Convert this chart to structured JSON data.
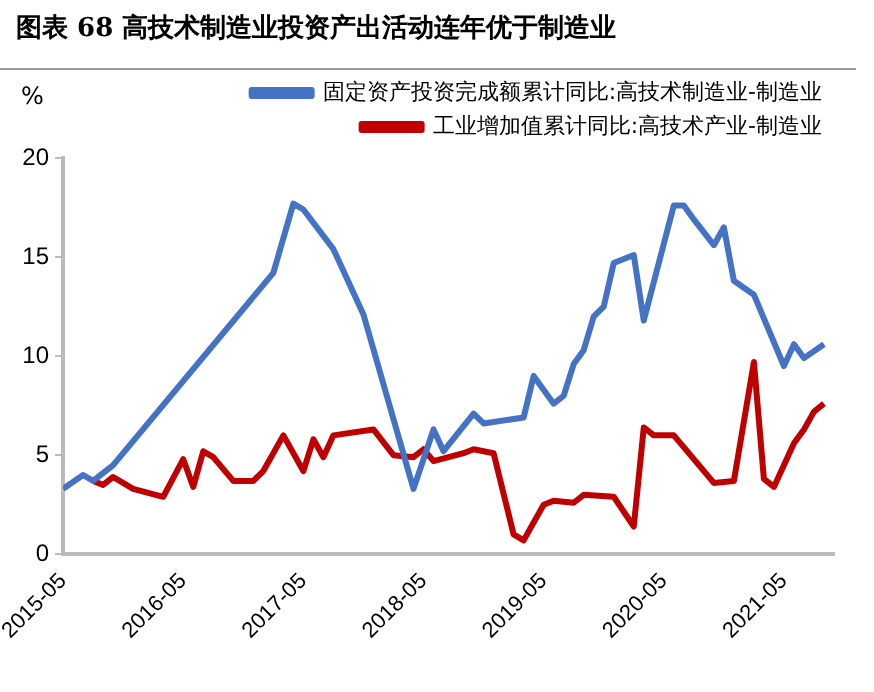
{
  "chart_data": {
    "type": "line",
    "title": "图表 68  高技术制造业投资产出活动连年优于制造业",
    "ylabel": "%",
    "xlim": [
      "2015-05",
      "2021-10"
    ],
    "xticks": [
      "2015-05",
      "2016-05",
      "2017-05",
      "2018-05",
      "2019-05",
      "2020-05",
      "2021-05"
    ],
    "ylim": [
      0,
      20
    ],
    "yticks": [
      0,
      5,
      10,
      15,
      20
    ],
    "grid": false,
    "legend": "top right",
    "line_style": "solid",
    "marker": "none",
    "series": [
      {
        "name": "固定资产投资完成额累计同比:高技术制造业-制造业",
        "color": "#4472c4",
        "x": [
          "2015-05",
          "2015-07",
          "2015-08",
          "2015-10",
          "2017-02",
          "2017-04",
          "2017-05",
          "2017-08",
          "2017-11",
          "2018-04",
          "2018-06",
          "2018-07",
          "2018-10",
          "2018-11",
          "2019-03",
          "2019-04",
          "2019-06",
          "2019-07",
          "2019-08",
          "2019-09",
          "2019-10",
          "2019-11",
          "2019-12",
          "2020-02",
          "2020-03",
          "2020-06",
          "2020-07",
          "2020-08",
          "2020-10",
          "2020-11",
          "2020-12",
          "2021-02",
          "2021-05",
          "2021-06",
          "2021-07",
          "2021-09"
        ],
        "values": [
          3.3,
          4.0,
          3.7,
          4.5,
          14.2,
          17.7,
          17.4,
          15.4,
          12.1,
          3.3,
          6.3,
          5.2,
          7.1,
          6.6,
          6.9,
          9.0,
          7.6,
          8.0,
          9.6,
          10.3,
          12.0,
          12.5,
          14.7,
          15.1,
          11.8,
          17.6,
          17.6,
          16.9,
          15.6,
          16.5,
          13.8,
          13.1,
          9.5,
          10.6,
          9.9,
          10.6
        ]
      },
      {
        "name": "工业增加值累计同比:高技术产业-制造业",
        "color": "#c00000",
        "x": [
          "2015-08",
          "2015-09",
          "2015-10",
          "2015-12",
          "2016-03",
          "2016-05",
          "2016-06",
          "2016-07",
          "2016-08",
          "2016-10",
          "2016-12",
          "2017-01",
          "2017-03",
          "2017-05",
          "2017-06",
          "2017-07",
          "2017-08",
          "2017-12",
          "2018-02",
          "2018-04",
          "2018-05",
          "2018-06",
          "2018-09",
          "2018-10",
          "2018-12",
          "2019-02",
          "2019-03",
          "2019-05",
          "2019-06",
          "2019-08",
          "2019-09",
          "2019-12",
          "2020-02",
          "2020-03",
          "2020-04",
          "2020-06",
          "2020-08",
          "2020-10",
          "2020-12",
          "2021-02",
          "2021-03",
          "2021-04",
          "2021-06",
          "2021-07",
          "2021-08",
          "2021-09"
        ],
        "values": [
          3.7,
          3.5,
          3.9,
          3.3,
          2.9,
          4.8,
          3.4,
          5.2,
          4.9,
          3.7,
          3.7,
          4.2,
          6.0,
          4.2,
          5.8,
          4.9,
          6.0,
          6.3,
          5.0,
          4.9,
          5.3,
          4.7,
          5.1,
          5.3,
          5.1,
          1.0,
          0.7,
          2.5,
          2.7,
          2.6,
          3.0,
          2.9,
          1.4,
          6.4,
          6.0,
          6.0,
          4.8,
          3.6,
          3.7,
          9.7,
          3.8,
          3.4,
          5.6,
          6.3,
          7.2,
          7.6
        ]
      }
    ]
  }
}
